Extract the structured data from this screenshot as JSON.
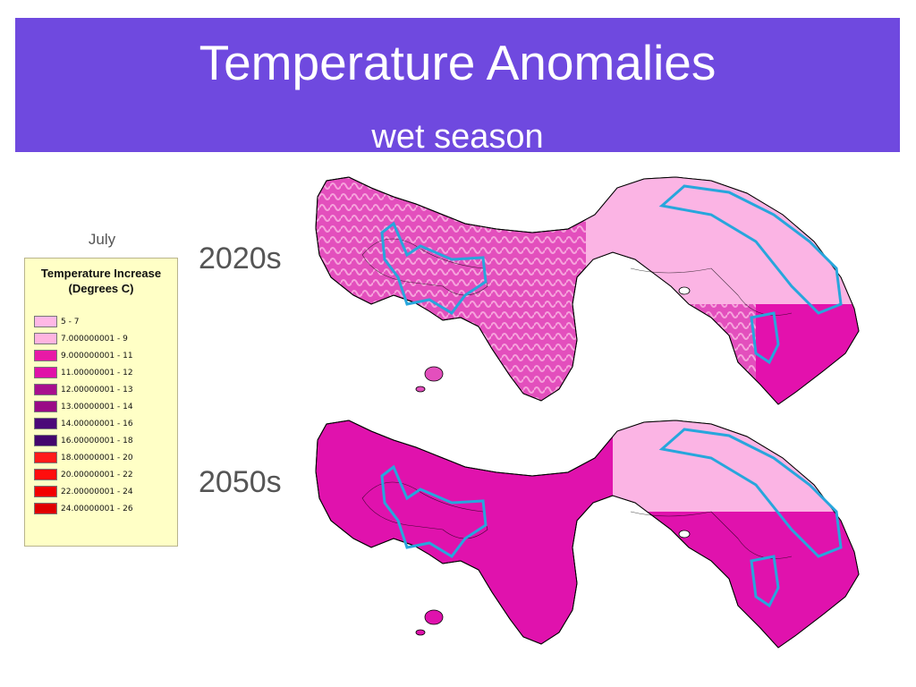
{
  "slide": {
    "title": "Temperature Anomalies",
    "subtitle": "wet season",
    "banner_color": "#6f49df"
  },
  "legend": {
    "month": "July",
    "heading_line1": "Temperature Increase",
    "heading_line2": "(Degrees C)",
    "items": [
      {
        "label": "5 - 7",
        "color": "#ffb8e6"
      },
      {
        "label": "7.000000001 - 9",
        "color": "#ffb4e0"
      },
      {
        "label": "9.000000001 - 11",
        "color": "#e81aa6"
      },
      {
        "label": "11.00000001 - 12",
        "color": "#e011a8"
      },
      {
        "label": "12.00000001 - 13",
        "color": "#a80f8e"
      },
      {
        "label": "13.00000001 - 14",
        "color": "#9a0a86"
      },
      {
        "label": "14.00000001 - 16",
        "color": "#4b0878"
      },
      {
        "label": "16.00000001 - 18",
        "color": "#44066e"
      },
      {
        "label": "18.00000001 - 20",
        "color": "#ff1a1a"
      },
      {
        "label": "20.00000001 - 22",
        "color": "#ff0d0d"
      },
      {
        "label": "22.00000001 - 24",
        "color": "#f20000"
      },
      {
        "label": "24.00000001 - 26",
        "color": "#e00000"
      }
    ]
  },
  "maps": [
    {
      "period": "2020s",
      "west_color": "#e34fbd",
      "east_color": "#fbb4e4",
      "southeast_color": "#e311ad",
      "boundary_color": "#27a6dc"
    },
    {
      "period": "2050s",
      "west_color": "#e012ad",
      "east_color": "#fbb4e4",
      "southeast_color": "#e012ad",
      "boundary_color": "#27a6dc"
    }
  ]
}
